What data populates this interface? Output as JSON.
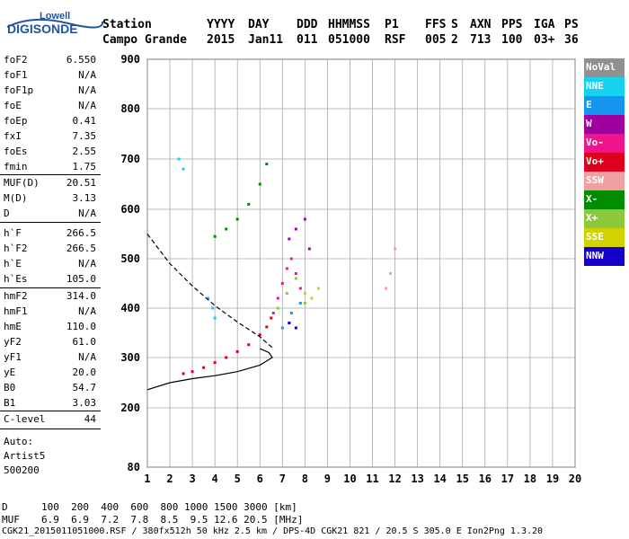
{
  "logo": {
    "top": "Lowell",
    "bottom": "DIGISONDE"
  },
  "header": {
    "labels": [
      "Station",
      "YYYY",
      "DAY",
      "DDD",
      "HHMMSS",
      "P1",
      "FFS",
      "S",
      "AXN",
      "PPS",
      "IGA",
      "PS"
    ],
    "values": [
      "Campo Grande",
      "2015",
      "Jan11",
      "011",
      "051000",
      "RSF",
      "005",
      "2",
      "713",
      "100",
      "03+",
      "36"
    ]
  },
  "params_group1": [
    {
      "name": "foF2",
      "value": "6.550"
    },
    {
      "name": "foF1",
      "value": "N/A"
    },
    {
      "name": "foF1p",
      "value": "N/A"
    },
    {
      "name": "foE",
      "value": "N/A"
    },
    {
      "name": "foEp",
      "value": "0.41"
    },
    {
      "name": "fxI",
      "value": "7.35"
    },
    {
      "name": "foEs",
      "value": "2.55"
    },
    {
      "name": "fmin",
      "value": "1.75"
    }
  ],
  "params_group2": [
    {
      "name": "MUF(D)",
      "value": "20.51"
    },
    {
      "name": "M(D)",
      "value": "3.13"
    },
    {
      "name": "D",
      "value": "N/A"
    }
  ],
  "params_group3": [
    {
      "name": "h`F",
      "value": "266.5"
    },
    {
      "name": "h`F2",
      "value": "266.5"
    },
    {
      "name": "h`E",
      "value": "N/A"
    },
    {
      "name": "h`Es",
      "value": "105.0"
    }
  ],
  "params_group4": [
    {
      "name": "hmF2",
      "value": "314.0"
    },
    {
      "name": "hmF1",
      "value": "N/A"
    },
    {
      "name": "hmE",
      "value": "110.0"
    },
    {
      "name": "yF2",
      "value": "61.0"
    },
    {
      "name": "yF1",
      "value": "N/A"
    },
    {
      "name": "yE",
      "value": "20.0"
    },
    {
      "name": "B0",
      "value": "54.7"
    },
    {
      "name": "B1",
      "value": "3.03"
    }
  ],
  "params_group5": [
    {
      "name": "C-level",
      "value": "44"
    }
  ],
  "autoscaling": {
    "line1": "Auto:",
    "line2": "Artist5",
    "line3": "500200"
  },
  "legend": [
    {
      "label": "NoVal",
      "color": "#909090"
    },
    {
      "label": "NNE",
      "color": "#14d2f0"
    },
    {
      "label": "E",
      "color": "#1496f0"
    },
    {
      "label": "W",
      "color": "#a0009c"
    },
    {
      "label": "Vo-",
      "color": "#f0148c"
    },
    {
      "label": "Vo+",
      "color": "#dc001e"
    },
    {
      "label": "SSW",
      "color": "#f0a0a0"
    },
    {
      "label": "X-",
      "color": "#008c00"
    },
    {
      "label": "X+",
      "color": "#8cc83c"
    },
    {
      "label": "SSE",
      "color": "#d2d200"
    },
    {
      "label": "NNW",
      "color": "#1400c8"
    }
  ],
  "footer": {
    "d_label": "D",
    "d_values": "100  200  400  600  800 1000 1500 3000 [km]",
    "muf_label": "MUF",
    "muf_values": "6.9  6.9  7.2  7.8  8.5  9.5 12.6 20.5 [MHz]",
    "file_line": "CGK21_2015011051000.RSF / 380fx512h 50 kHz 2.5 km / DPS-4D CGK21 821 / 20.5 S 305.0 E Ion2Png 1.3.20"
  },
  "chart_data": {
    "type": "scatter",
    "xlim": [
      1,
      20
    ],
    "ylim": [
      80,
      900
    ],
    "x_ticks": [
      "1",
      "2",
      "3",
      "4",
      "5",
      "6",
      "7",
      "8",
      "9",
      "10",
      "11",
      "12",
      "13",
      "14",
      "15",
      "16",
      "17",
      "18",
      "19",
      "20"
    ],
    "y_ticks": [
      "80",
      "200",
      "300",
      "400",
      "500",
      "600",
      "700",
      "800",
      "900"
    ],
    "grid": true,
    "legend_position": "right",
    "series": [
      {
        "name": "Vo+",
        "color": "#dc001e",
        "x": [
          2.6,
          3.0,
          3.5,
          4.0,
          4.5,
          5.0,
          5.5,
          6.0,
          6.3,
          6.5
        ],
        "y": [
          268,
          272,
          280,
          290,
          300,
          312,
          326,
          346,
          362,
          380
        ]
      },
      {
        "name": "Vo-",
        "color": "#f0148c",
        "x": [
          6.6,
          6.8,
          7.0,
          7.2,
          7.4,
          7.6,
          7.8
        ],
        "y": [
          390,
          420,
          450,
          480,
          500,
          470,
          440
        ]
      },
      {
        "name": "W",
        "color": "#a0009c",
        "x": [
          7.3,
          7.6,
          8.0,
          8.2
        ],
        "y": [
          540,
          560,
          580,
          520
        ]
      },
      {
        "name": "X-",
        "color": "#008c00",
        "x": [
          4.0,
          4.5,
          5.0,
          5.5,
          6.0,
          6.3
        ],
        "y": [
          545,
          560,
          580,
          610,
          650,
          690
        ]
      },
      {
        "name": "X+",
        "color": "#8cc83c",
        "x": [
          6.8,
          7.2,
          7.6,
          8.0
        ],
        "y": [
          400,
          430,
          460,
          410
        ]
      },
      {
        "name": "NNE",
        "color": "#14d2f0",
        "x": [
          2.4,
          2.6,
          3.7,
          3.9,
          4.0
        ],
        "y": [
          700,
          680,
          420,
          400,
          380
        ]
      },
      {
        "name": "E",
        "color": "#1496f0",
        "x": [
          7.0,
          7.4,
          7.8
        ],
        "y": [
          360,
          390,
          410
        ]
      },
      {
        "name": "NNW",
        "color": "#1400c8",
        "x": [
          7.3,
          7.6
        ],
        "y": [
          370,
          360
        ]
      },
      {
        "name": "SSE",
        "color": "#d2d200",
        "x": [
          8.0,
          8.3,
          8.6
        ],
        "y": [
          430,
          420,
          440
        ]
      },
      {
        "name": "SSW",
        "color": "#f0a0a0",
        "x": [
          11.6,
          11.8,
          12.0
        ],
        "y": [
          440,
          470,
          520
        ]
      }
    ],
    "profile_curves": [
      {
        "name": "dashed",
        "style": "dashed",
        "x": [
          1.0,
          2.0,
          3.0,
          4.0,
          5.0,
          6.0,
          6.55
        ],
        "y": [
          550,
          490,
          445,
          405,
          372,
          342,
          320
        ]
      },
      {
        "name": "solid",
        "style": "solid",
        "x": [
          1.0,
          2.0,
          3.0,
          4.0,
          5.0,
          6.0,
          6.55,
          6.4,
          6.0
        ],
        "y": [
          236,
          250,
          258,
          264,
          272,
          285,
          300,
          310,
          318
        ]
      }
    ]
  }
}
